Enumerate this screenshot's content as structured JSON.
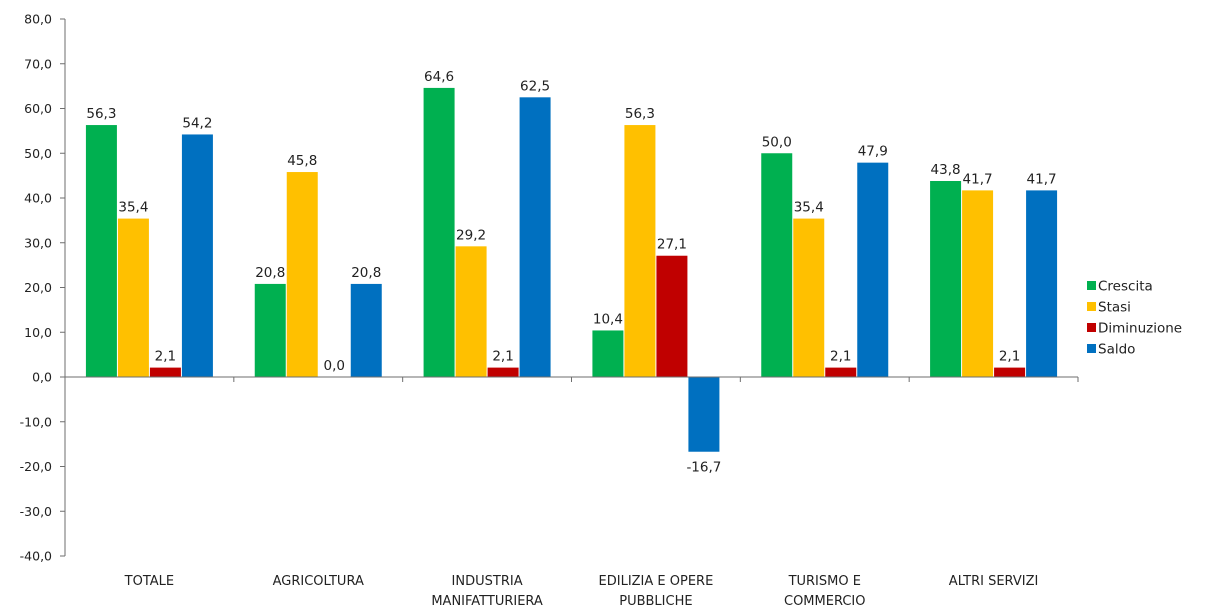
{
  "chart_data": {
    "type": "bar",
    "categories": [
      [
        "TOTALE"
      ],
      [
        "AGRICOLTURA"
      ],
      [
        "INDUSTRIA",
        "MANIFATTURIERA"
      ],
      [
        "EDILIZIA E OPERE",
        "PUBBLICHE"
      ],
      [
        "TURISMO E",
        "COMMERCIO"
      ],
      [
        "ALTRI SERVIZI"
      ]
    ],
    "series": [
      {
        "name": "Crescita",
        "color": "#00B050",
        "values": [
          56.3,
          20.8,
          64.6,
          10.4,
          50.0,
          43.8
        ],
        "labels": [
          "56,3",
          "20,8",
          "64,6",
          "10,4",
          "50,0",
          "43,8"
        ]
      },
      {
        "name": "Stasi",
        "color": "#FFC000",
        "values": [
          35.4,
          45.8,
          29.2,
          56.3,
          35.4,
          41.7
        ],
        "labels": [
          "35,4",
          "45,8",
          "29,2",
          "56,3",
          "35,4",
          "41,7"
        ]
      },
      {
        "name": "Diminuzione",
        "color": "#C00000",
        "values": [
          2.1,
          0.0,
          2.1,
          27.1,
          2.1,
          2.1
        ],
        "labels": [
          "2,1",
          "0,0",
          "2,1",
          "27,1",
          "2,1",
          "2,1"
        ]
      },
      {
        "name": "Saldo",
        "color": "#0070C0",
        "values": [
          54.2,
          20.8,
          62.5,
          -16.7,
          47.9,
          41.7
        ],
        "labels": [
          "54,2",
          "20,8",
          "62,5",
          "-16,7",
          "47,9",
          "41,7"
        ]
      }
    ],
    "ylim": [
      -40,
      80
    ],
    "yticks": [
      80,
      70,
      60,
      50,
      40,
      30,
      20,
      10,
      0,
      -10,
      -20,
      -30,
      -40
    ],
    "ytick_labels": [
      "80,0",
      "70,0",
      "60,0",
      "50,0",
      "40,0",
      "30,0",
      "20,0",
      "10,0",
      "0,0",
      "-10,0",
      "-20,0",
      "-30,0",
      "-40,0"
    ],
    "grid": false,
    "legend_position": "right",
    "title": "",
    "xlabel": "",
    "ylabel": ""
  }
}
